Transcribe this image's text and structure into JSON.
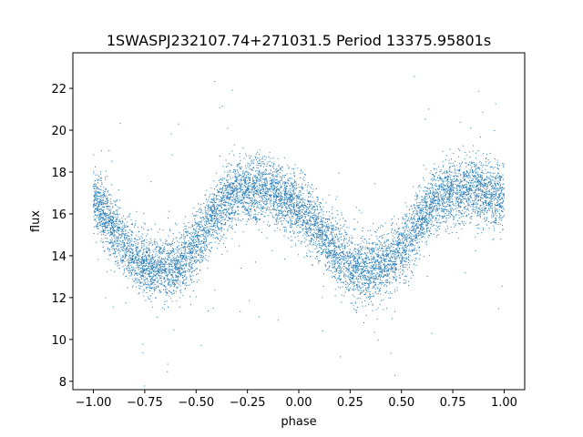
{
  "chart_data": {
    "type": "scatter",
    "title": "1SWASPJ232107.74+271031.5 Period 13375.95801s",
    "xlabel": "phase",
    "ylabel": "flux",
    "xlim": [
      -1.1,
      1.1
    ],
    "ylim": [
      7.6,
      23.7
    ],
    "xticks": [
      -1.0,
      -0.75,
      -0.5,
      -0.25,
      0.0,
      0.25,
      0.5,
      0.75,
      1.0
    ],
    "xtick_labels": [
      "−1.00",
      "−0.75",
      "−0.50",
      "−0.25",
      "0.00",
      "0.25",
      "0.50",
      "0.75",
      "1.00"
    ],
    "yticks": [
      8,
      10,
      12,
      14,
      16,
      18,
      20,
      22
    ],
    "ytick_labels": [
      "8",
      "10",
      "12",
      "14",
      "16",
      "18",
      "20",
      "22"
    ],
    "grid": false,
    "legend": "none",
    "point_color": "#1f77b4",
    "series": [
      {
        "x": [
          -1.0,
          -0.95,
          -0.9,
          -0.85,
          -0.8,
          -0.75,
          -0.7,
          -0.65,
          -0.6,
          -0.55,
          -0.5,
          -0.45,
          -0.4,
          -0.35,
          -0.3,
          -0.25,
          -0.2,
          -0.15,
          -0.1,
          -0.05,
          0.0,
          0.05,
          0.1,
          0.15,
          0.2,
          0.25,
          0.3,
          0.35,
          0.4,
          0.45,
          0.5,
          0.55,
          0.6,
          0.65,
          0.7,
          0.75,
          0.8,
          0.85,
          0.9,
          0.95,
          1.0
        ],
        "y": [
          16.8,
          16.0,
          15.2,
          14.5,
          13.9,
          13.5,
          13.4,
          13.4,
          13.5,
          13.9,
          14.5,
          15.3,
          16.1,
          16.7,
          17.0,
          17.1,
          17.1,
          17.1,
          16.9,
          16.6,
          16.3,
          15.8,
          15.2,
          14.5,
          14.0,
          13.6,
          13.4,
          13.4,
          13.5,
          13.8,
          14.3,
          15.0,
          15.8,
          16.5,
          16.9,
          17.1,
          17.2,
          17.1,
          17.0,
          16.9,
          16.8
        ],
        "scatter_band": 0.75,
        "n_points": 9000,
        "n_outliers": 160
      }
    ]
  }
}
